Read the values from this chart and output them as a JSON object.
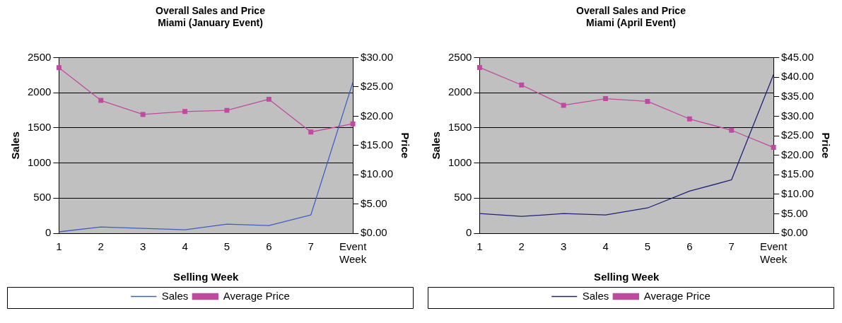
{
  "chart_data": [
    {
      "type": "line",
      "title": "Overall Sales and Price\nMiami (January Event)",
      "xlabel": "Selling Week",
      "ylabel": "Sales",
      "y2label": "Price",
      "categories": [
        "1",
        "2",
        "3",
        "4",
        "5",
        "6",
        "7",
        "Event Week"
      ],
      "ylim": [
        0,
        2500
      ],
      "yticks": [
        0,
        500,
        1000,
        1500,
        2000,
        2500
      ],
      "y2lim": [
        0,
        30
      ],
      "y2ticks": [
        {
          "value": 0,
          "label": "$0.00"
        },
        {
          "value": 5,
          "label": "$5.00"
        },
        {
          "value": 10,
          "label": "$10.00"
        },
        {
          "value": 15,
          "label": "$15.00"
        },
        {
          "value": 20,
          "label": "$20.00"
        },
        {
          "value": 25,
          "label": "$25.00"
        },
        {
          "value": 30,
          "label": "$30.00"
        }
      ],
      "grid": "y",
      "legend": "bottom",
      "series": [
        {
          "name": "Sales",
          "color": "#3f5fbf",
          "marker": "none",
          "values": [
            20,
            90,
            70,
            50,
            130,
            110,
            260,
            2150
          ]
        },
        {
          "name": "Average Price",
          "color": "#c04aa0",
          "marker": "square",
          "axis": "y2",
          "values": [
            28.3,
            22.7,
            20.3,
            20.8,
            21.0,
            22.9,
            17.3,
            18.7
          ]
        }
      ]
    },
    {
      "type": "line",
      "title": "Overall Sales and Price\nMiami (April Event)",
      "xlabel": "Selling Week",
      "ylabel": "Sales",
      "y2label": "Price",
      "categories": [
        "1",
        "2",
        "3",
        "4",
        "5",
        "6",
        "7",
        "Event Week"
      ],
      "ylim": [
        0,
        2500
      ],
      "yticks": [
        0,
        500,
        1000,
        1500,
        2000,
        2500
      ],
      "y2lim": [
        0,
        45
      ],
      "y2ticks": [
        {
          "value": 0,
          "label": "$0.00"
        },
        {
          "value": 5,
          "label": "$5.00"
        },
        {
          "value": 10,
          "label": "$10.00"
        },
        {
          "value": 15,
          "label": "$15.00"
        },
        {
          "value": 20,
          "label": "$20.00"
        },
        {
          "value": 25,
          "label": "$25.00"
        },
        {
          "value": 30,
          "label": "$30.00"
        },
        {
          "value": 35,
          "label": "$35.00"
        },
        {
          "value": 40,
          "label": "$40.00"
        },
        {
          "value": 45,
          "label": "$45.00"
        }
      ],
      "grid": "y",
      "legend": "bottom",
      "series": [
        {
          "name": "Sales",
          "color": "#20207a",
          "marker": "none",
          "values": [
            280,
            240,
            280,
            260,
            360,
            600,
            760,
            2260
          ]
        },
        {
          "name": "Average Price",
          "color": "#c04aa0",
          "marker": "square",
          "axis": "y2",
          "values": [
            42.5,
            38.0,
            32.8,
            34.5,
            33.8,
            29.3,
            26.4,
            22.0
          ]
        }
      ]
    }
  ]
}
